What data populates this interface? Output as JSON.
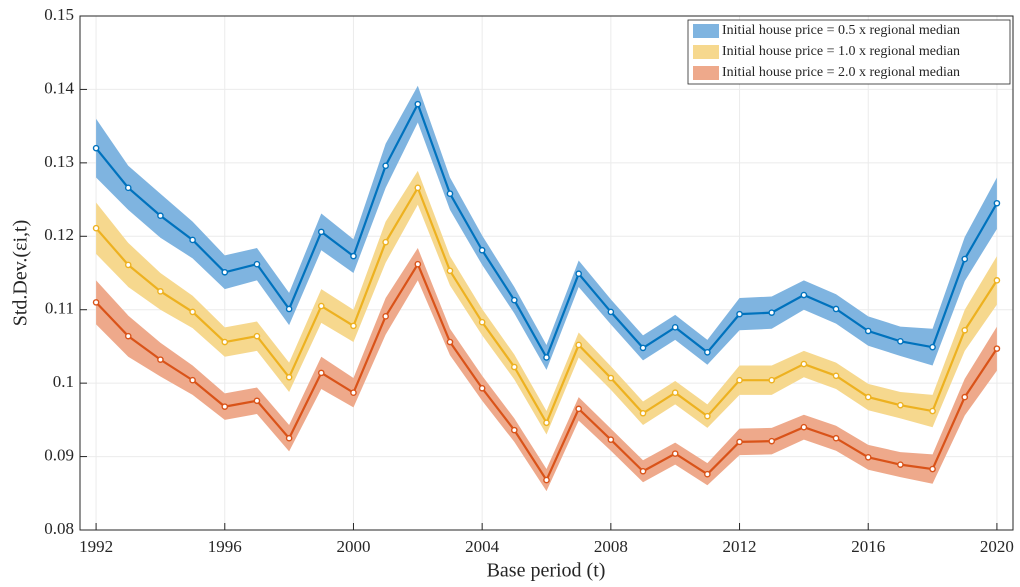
{
  "chart_data": {
    "type": "line",
    "x_label": "Base period (t)",
    "y_label": "Std.Dev.(εi,t)",
    "x": [
      1992,
      1993,
      1994,
      1995,
      1996,
      1997,
      1998,
      1999,
      2000,
      2001,
      2002,
      2003,
      2004,
      2005,
      2006,
      2007,
      2008,
      2009,
      2010,
      2011,
      2012,
      2013,
      2014,
      2015,
      2016,
      2017,
      2018,
      2019,
      2020
    ],
    "xlim": [
      1991.5,
      2020.5
    ],
    "xticks": [
      1992,
      1996,
      2000,
      2004,
      2008,
      2012,
      2016,
      2020
    ],
    "ylim": [
      0.08,
      0.15
    ],
    "yticks": [
      0.08,
      0.09,
      0.1,
      0.11,
      0.12,
      0.13,
      0.14,
      0.15
    ],
    "grid": true,
    "legend": "top-right",
    "series": [
      {
        "name": "Initial house price = 0.5 x regional median",
        "color": "#0072bd",
        "band_color": "#7fb4e0",
        "values": [
          0.132,
          0.1266,
          0.1228,
          0.1195,
          0.1151,
          0.1162,
          0.1101,
          0.1206,
          0.1173,
          0.1296,
          0.138,
          0.1258,
          0.1181,
          0.1113,
          0.1035,
          0.1149,
          0.1097,
          0.1048,
          0.1076,
          0.1042,
          0.1094,
          0.1096,
          0.112,
          0.1101,
          0.1071,
          0.1057,
          0.1049,
          0.1169,
          0.1245
        ],
        "errors": [
          0.004,
          0.003,
          0.003,
          0.0025,
          0.0023,
          0.0022,
          0.0022,
          0.0025,
          0.0023,
          0.003,
          0.0025,
          0.0022,
          0.002,
          0.0018,
          0.0017,
          0.0018,
          0.0017,
          0.0017,
          0.0017,
          0.0017,
          0.0022,
          0.0022,
          0.002,
          0.002,
          0.002,
          0.002,
          0.0025,
          0.003,
          0.0035
        ]
      },
      {
        "name": "Initial house price = 1.0 x regional median",
        "color": "#edb120",
        "band_color": "#f6d88e",
        "values": [
          0.1211,
          0.1161,
          0.1125,
          0.1097,
          0.1056,
          0.1064,
          0.1008,
          0.1105,
          0.1078,
          0.1192,
          0.1266,
          0.1153,
          0.1083,
          0.1022,
          0.0946,
          0.1052,
          0.1007,
          0.0959,
          0.0987,
          0.0955,
          0.1004,
          0.1004,
          0.1026,
          0.101,
          0.0981,
          0.097,
          0.0962,
          0.1072,
          0.114
        ],
        "errors": [
          0.0035,
          0.003,
          0.0025,
          0.0022,
          0.002,
          0.002,
          0.002,
          0.0023,
          0.0022,
          0.0028,
          0.0023,
          0.002,
          0.0018,
          0.0017,
          0.0016,
          0.0017,
          0.0016,
          0.0016,
          0.0016,
          0.0016,
          0.002,
          0.002,
          0.0018,
          0.0018,
          0.0018,
          0.0018,
          0.0022,
          0.0028,
          0.0033
        ]
      },
      {
        "name": "Initial house price = 2.0 x regional median",
        "color": "#d95319",
        "band_color": "#eea98b",
        "values": [
          0.111,
          0.1064,
          0.1032,
          0.1004,
          0.0968,
          0.0976,
          0.0925,
          0.1014,
          0.0987,
          0.1091,
          0.1162,
          0.1056,
          0.0993,
          0.0936,
          0.0868,
          0.0965,
          0.0923,
          0.088,
          0.0904,
          0.0876,
          0.092,
          0.0921,
          0.094,
          0.0925,
          0.0899,
          0.0889,
          0.0883,
          0.0981,
          0.1047
        ],
        "errors": [
          0.003,
          0.0028,
          0.0023,
          0.002,
          0.0018,
          0.0018,
          0.0018,
          0.0022,
          0.002,
          0.0025,
          0.0022,
          0.0018,
          0.0017,
          0.0016,
          0.0015,
          0.0016,
          0.0015,
          0.0015,
          0.0015,
          0.0015,
          0.0018,
          0.0018,
          0.0017,
          0.0017,
          0.0017,
          0.0017,
          0.002,
          0.0025,
          0.003
        ]
      }
    ]
  }
}
